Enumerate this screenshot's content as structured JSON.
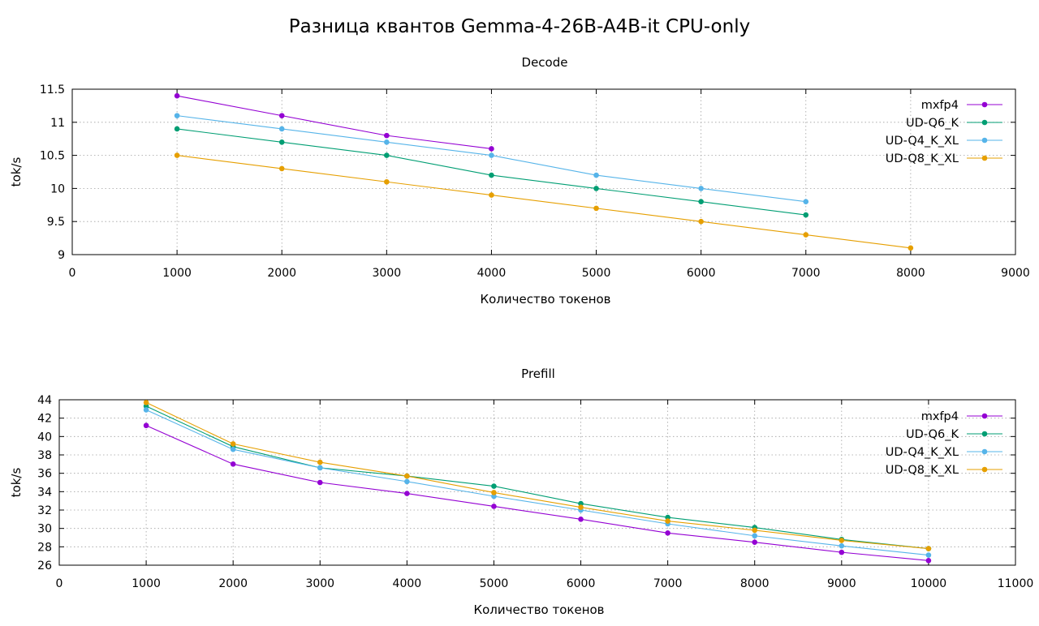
{
  "page_title": "Разница квантов Gemma-4-26B-A4B-it CPU-only",
  "colors": {
    "mxfp4": "#9400d3",
    "UD-Q6_K": "#009e73",
    "UD-Q4_K_XL": "#56b4e9",
    "UD-Q8_K_XL": "#e69f00"
  },
  "chart_data": [
    {
      "type": "line",
      "title": "Decode",
      "xlabel": "Количество токенов",
      "ylabel": "tok/s",
      "xlim": [
        0,
        9000
      ],
      "ylim": [
        9,
        11.5
      ],
      "xticks": [
        0,
        1000,
        2000,
        3000,
        4000,
        5000,
        6000,
        7000,
        8000,
        9000
      ],
      "yticks": [
        9,
        9.5,
        10,
        10.5,
        11,
        11.5
      ],
      "xtick_labels": [
        "0",
        "1000",
        "2000",
        "3000",
        "4000",
        "5000",
        "6000",
        "7000",
        "8000",
        "9000"
      ],
      "ytick_labels": [
        "9",
        "9.5",
        "10",
        "10.5",
        "11",
        "11.5"
      ],
      "grid": true,
      "legend_position": "top-right",
      "series": [
        {
          "name": "mxfp4",
          "x": [
            1000,
            2000,
            3000,
            4000
          ],
          "y": [
            11.4,
            11.1,
            10.8,
            10.6
          ]
        },
        {
          "name": "UD-Q6_K",
          "x": [
            1000,
            2000,
            3000,
            4000,
            5000,
            6000,
            7000
          ],
          "y": [
            10.9,
            10.7,
            10.5,
            10.2,
            10.0,
            9.8,
            9.6
          ]
        },
        {
          "name": "UD-Q4_K_XL",
          "x": [
            1000,
            2000,
            3000,
            4000,
            5000,
            6000,
            7000
          ],
          "y": [
            11.1,
            10.9,
            10.7,
            10.5,
            10.2,
            10.0,
            9.8
          ]
        },
        {
          "name": "UD-Q8_K_XL",
          "x": [
            1000,
            2000,
            3000,
            4000,
            5000,
            6000,
            7000,
            8000
          ],
          "y": [
            10.5,
            10.3,
            10.1,
            9.9,
            9.7,
            9.5,
            9.3,
            9.1
          ]
        }
      ]
    },
    {
      "type": "line",
      "title": "Prefill",
      "xlabel": "Количество токенов",
      "ylabel": "tok/s",
      "xlim": [
        0,
        11000
      ],
      "ylim": [
        26,
        44
      ],
      "xticks": [
        0,
        1000,
        2000,
        3000,
        4000,
        5000,
        6000,
        7000,
        8000,
        9000,
        10000,
        11000
      ],
      "yticks": [
        26,
        28,
        30,
        32,
        34,
        36,
        38,
        40,
        42,
        44
      ],
      "xtick_labels": [
        "0",
        "1000",
        "2000",
        "3000",
        "4000",
        "5000",
        "6000",
        "7000",
        "8000",
        "9000",
        "10000",
        "11000"
      ],
      "ytick_labels": [
        "26",
        "28",
        "30",
        "32",
        "34",
        "36",
        "38",
        "40",
        "42",
        "44"
      ],
      "grid": true,
      "legend_position": "top-right",
      "series": [
        {
          "name": "mxfp4",
          "x": [
            1000,
            2000,
            3000,
            4000,
            5000,
            6000,
            7000,
            8000,
            9000,
            10000
          ],
          "y": [
            41.2,
            37.0,
            35.0,
            33.8,
            32.4,
            31.0,
            29.5,
            28.5,
            27.4,
            26.5
          ]
        },
        {
          "name": "UD-Q6_K",
          "x": [
            1000,
            2000,
            3000,
            4000,
            5000,
            6000,
            7000,
            8000,
            9000,
            10000
          ],
          "y": [
            43.3,
            38.9,
            36.6,
            35.7,
            34.6,
            32.7,
            31.2,
            30.1,
            28.8,
            27.8
          ]
        },
        {
          "name": "UD-Q4_K_XL",
          "x": [
            1000,
            2000,
            3000,
            4000,
            5000,
            6000,
            7000,
            8000,
            9000,
            10000
          ],
          "y": [
            42.9,
            38.6,
            36.6,
            35.1,
            33.5,
            32.0,
            30.5,
            29.2,
            28.1,
            27.1
          ]
        },
        {
          "name": "UD-Q8_K_XL",
          "x": [
            1000,
            2000,
            3000,
            4000,
            5000,
            6000,
            7000,
            8000,
            9000,
            10000
          ],
          "y": [
            43.7,
            39.2,
            37.2,
            35.7,
            33.9,
            32.3,
            30.8,
            29.8,
            28.7,
            27.8
          ]
        }
      ]
    }
  ]
}
